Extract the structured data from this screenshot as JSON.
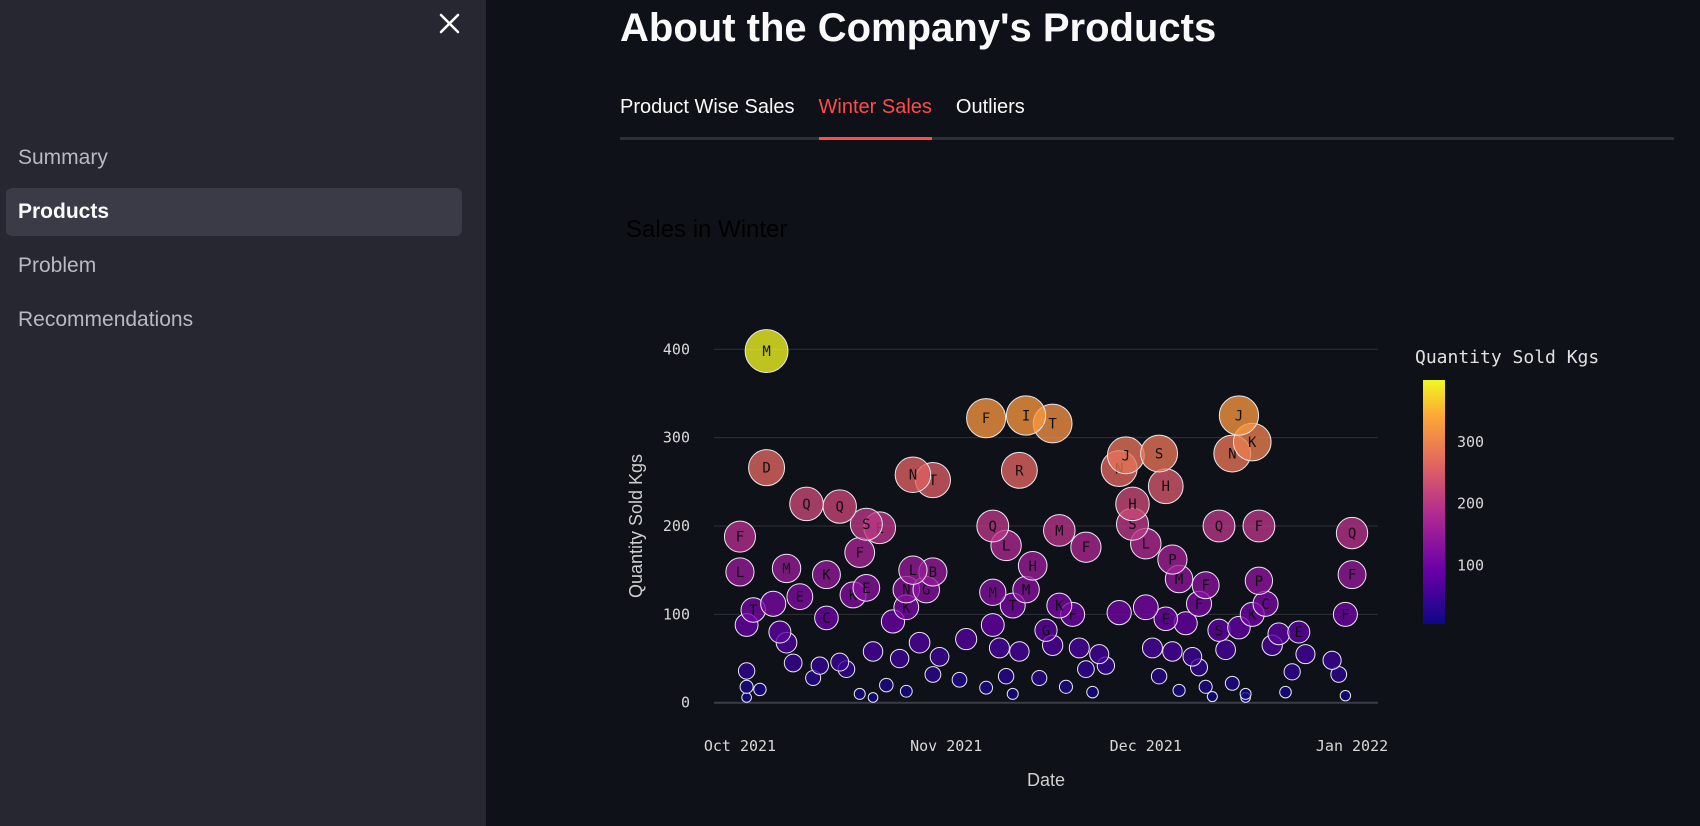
{
  "sidebar": {
    "close_icon": "close-icon",
    "items": [
      {
        "label": "Summary",
        "active": false
      },
      {
        "label": "Products",
        "active": true
      },
      {
        "label": "Problem",
        "active": false
      },
      {
        "label": "Recommendations",
        "active": false
      }
    ]
  },
  "main": {
    "title": "About the Company's Products",
    "tabs": [
      {
        "label": "Product Wise Sales",
        "active": false
      },
      {
        "label": "Winter Sales",
        "active": true
      },
      {
        "label": "Outliers",
        "active": false
      }
    ]
  },
  "colors": {
    "background": "#0e1117",
    "sidebar": "#262730",
    "accent": "#ff4b4b",
    "gridline": "#2f323a"
  },
  "chart_data": {
    "type": "scatter",
    "title": "Sales in Winter",
    "xlabel": "Date",
    "ylabel": "Quantity Sold Kgs",
    "xlim": [
      "2021-09-28",
      "2022-01-04"
    ],
    "ylim": [
      -15,
      415
    ],
    "yticks": [
      0,
      100,
      200,
      300,
      400
    ],
    "xticks": [
      {
        "date": "2021-10-01",
        "label": "Oct 2021"
      },
      {
        "date": "2021-11-01",
        "label": "Nov 2021"
      },
      {
        "date": "2021-12-01",
        "label": "Dec 2021"
      },
      {
        "date": "2022-01-01",
        "label": "Jan 2022"
      }
    ],
    "colorbar": {
      "title": "Quantity Sold Kgs",
      "ticks": [
        100,
        200,
        300
      ],
      "min": 5,
      "max": 400
    },
    "points": [
      {
        "date": "2021-10-05",
        "qty": 398,
        "label": "M"
      },
      {
        "date": "2021-10-05",
        "qty": 266,
        "label": "D"
      },
      {
        "date": "2021-10-11",
        "qty": 225,
        "label": "Q"
      },
      {
        "date": "2021-10-16",
        "qty": 222,
        "label": "Q"
      },
      {
        "date": "2021-10-01",
        "qty": 188,
        "label": "F"
      },
      {
        "date": "2021-10-01",
        "qty": 148,
        "label": "L"
      },
      {
        "date": "2021-10-08",
        "qty": 152,
        "label": "M"
      },
      {
        "date": "2021-10-14",
        "qty": 145,
        "label": "K"
      },
      {
        "date": "2021-10-18",
        "qty": 122,
        "label": "K"
      },
      {
        "date": "2021-10-20",
        "qty": 202,
        "label": "S"
      },
      {
        "date": "2021-10-22",
        "qty": 198,
        "label": "E"
      },
      {
        "date": "2021-10-19",
        "qty": 170,
        "label": "F"
      },
      {
        "date": "2021-10-20",
        "qty": 130,
        "label": "E"
      },
      {
        "date": "2021-10-27",
        "qty": 258,
        "label": "N"
      },
      {
        "date": "2021-10-30",
        "qty": 252,
        "label": "T"
      },
      {
        "date": "2021-10-27",
        "qty": 150,
        "label": "L"
      },
      {
        "date": "2021-10-30",
        "qty": 148,
        "label": "B"
      },
      {
        "date": "2021-10-26",
        "qty": 128,
        "label": "N"
      },
      {
        "date": "2021-10-29",
        "qty": 128,
        "label": "G"
      },
      {
        "date": "2021-11-07",
        "qty": 322,
        "label": "F"
      },
      {
        "date": "2021-11-08",
        "qty": 200,
        "label": "Q"
      },
      {
        "date": "2021-11-10",
        "qty": 178,
        "label": "L"
      },
      {
        "date": "2021-11-08",
        "qty": 125,
        "label": "M"
      },
      {
        "date": "2021-11-13",
        "qty": 325,
        "label": "I"
      },
      {
        "date": "2021-11-12",
        "qty": 263,
        "label": "R"
      },
      {
        "date": "2021-11-17",
        "qty": 316,
        "label": "T"
      },
      {
        "date": "2021-11-18",
        "qty": 195,
        "label": "M"
      },
      {
        "date": "2021-11-14",
        "qty": 155,
        "label": "H"
      },
      {
        "date": "2021-11-13",
        "qty": 128,
        "label": "M"
      },
      {
        "date": "2021-11-18",
        "qty": 110,
        "label": "K"
      },
      {
        "date": "2021-11-22",
        "qty": 176,
        "label": "F"
      },
      {
        "date": "2021-11-28",
        "qty": 280,
        "label": "J"
      },
      {
        "date": "2021-11-27",
        "qty": 265,
        "label": "N"
      },
      {
        "date": "2021-12-03",
        "qty": 282,
        "label": "S"
      },
      {
        "date": "2021-12-04",
        "qty": 245,
        "label": "H"
      },
      {
        "date": "2021-11-29",
        "qty": 225,
        "label": "H"
      },
      {
        "date": "2021-11-29",
        "qty": 202,
        "label": "S"
      },
      {
        "date": "2021-12-01",
        "qty": 180,
        "label": "L"
      },
      {
        "date": "2021-12-05",
        "qty": 162,
        "label": "P"
      },
      {
        "date": "2021-12-06",
        "qty": 140,
        "label": "M"
      },
      {
        "date": "2021-12-10",
        "qty": 133,
        "label": "F"
      },
      {
        "date": "2021-12-09",
        "qty": 112,
        "label": "F"
      },
      {
        "date": "2021-12-15",
        "qty": 325,
        "label": "J"
      },
      {
        "date": "2021-12-14",
        "qty": 282,
        "label": "N"
      },
      {
        "date": "2021-12-17",
        "qty": 295,
        "label": "K"
      },
      {
        "date": "2021-12-12",
        "qty": 200,
        "label": "Q"
      },
      {
        "date": "2021-12-18",
        "qty": 200,
        "label": "F"
      },
      {
        "date": "2021-12-18",
        "qty": 138,
        "label": "P"
      },
      {
        "date": "2021-12-19",
        "qty": 112,
        "label": "C"
      },
      {
        "date": "2022-01-01",
        "qty": 192,
        "label": "Q"
      },
      {
        "date": "2022-01-01",
        "qty": 145,
        "label": "F"
      },
      {
        "date": "2021-12-31",
        "qty": 100,
        "label": "F"
      },
      {
        "date": "2021-10-03",
        "qty": 105,
        "label": "T"
      },
      {
        "date": "2021-10-06",
        "qty": 112,
        "label": ""
      },
      {
        "date": "2021-10-10",
        "qty": 120,
        "label": "E"
      },
      {
        "date": "2021-10-14",
        "qty": 96,
        "label": "C"
      },
      {
        "date": "2021-10-02",
        "qty": 88,
        "label": ""
      },
      {
        "date": "2021-10-07",
        "qty": 80,
        "label": ""
      },
      {
        "date": "2021-10-08",
        "qty": 68,
        "label": ""
      },
      {
        "date": "2021-10-26",
        "qty": 108,
        "label": "K"
      },
      {
        "date": "2021-10-24",
        "qty": 92,
        "label": ""
      },
      {
        "date": "2021-11-08",
        "qty": 88,
        "label": ""
      },
      {
        "date": "2021-11-11",
        "qty": 110,
        "label": "T"
      },
      {
        "date": "2021-11-20",
        "qty": 100,
        "label": "F"
      },
      {
        "date": "2021-11-16",
        "qty": 82,
        "label": "G"
      },
      {
        "date": "2021-11-27",
        "qty": 102,
        "label": ""
      },
      {
        "date": "2021-12-01",
        "qty": 108,
        "label": ""
      },
      {
        "date": "2021-12-04",
        "qty": 95,
        "label": "E"
      },
      {
        "date": "2021-12-07",
        "qty": 90,
        "label": ""
      },
      {
        "date": "2021-12-12",
        "qty": 82,
        "label": "S"
      },
      {
        "date": "2021-12-15",
        "qty": 85,
        "label": ""
      },
      {
        "date": "2021-12-17",
        "qty": 100,
        "label": "K"
      },
      {
        "date": "2021-12-21",
        "qty": 78,
        "label": ""
      },
      {
        "date": "2021-12-24",
        "qty": 80,
        "label": "E"
      },
      {
        "date": "2021-10-09",
        "qty": 45,
        "label": ""
      },
      {
        "date": "2021-10-13",
        "qty": 42,
        "label": ""
      },
      {
        "date": "2021-10-16",
        "qty": 46,
        "label": ""
      },
      {
        "date": "2021-10-21",
        "qty": 58,
        "label": ""
      },
      {
        "date": "2021-10-25",
        "qty": 50,
        "label": ""
      },
      {
        "date": "2021-10-28",
        "qty": 68,
        "label": ""
      },
      {
        "date": "2021-10-31",
        "qty": 52,
        "label": ""
      },
      {
        "date": "2021-11-04",
        "qty": 72,
        "label": ""
      },
      {
        "date": "2021-11-09",
        "qty": 62,
        "label": ""
      },
      {
        "date": "2021-11-12",
        "qty": 58,
        "label": ""
      },
      {
        "date": "2021-11-17",
        "qty": 65,
        "label": ""
      },
      {
        "date": "2021-11-21",
        "qty": 62,
        "label": ""
      },
      {
        "date": "2021-11-24",
        "qty": 55,
        "label": ""
      },
      {
        "date": "2021-12-02",
        "qty": 62,
        "label": ""
      },
      {
        "date": "2021-12-05",
        "qty": 58,
        "label": ""
      },
      {
        "date": "2021-12-08",
        "qty": 52,
        "label": ""
      },
      {
        "date": "2021-12-13",
        "qty": 60,
        "label": ""
      },
      {
        "date": "2021-12-20",
        "qty": 65,
        "label": ""
      },
      {
        "date": "2021-12-25",
        "qty": 55,
        "label": ""
      },
      {
        "date": "2021-12-29",
        "qty": 48,
        "label": ""
      },
      {
        "date": "2021-10-02",
        "qty": 36,
        "label": ""
      },
      {
        "date": "2021-10-12",
        "qty": 28,
        "label": ""
      },
      {
        "date": "2021-10-17",
        "qty": 38,
        "label": ""
      },
      {
        "date": "2021-10-23",
        "qty": 20,
        "label": ""
      },
      {
        "date": "2021-10-30",
        "qty": 32,
        "label": ""
      },
      {
        "date": "2021-11-03",
        "qty": 26,
        "label": ""
      },
      {
        "date": "2021-11-10",
        "qty": 30,
        "label": ""
      },
      {
        "date": "2021-11-15",
        "qty": 28,
        "label": ""
      },
      {
        "date": "2021-11-22",
        "qty": 38,
        "label": ""
      },
      {
        "date": "2021-11-25",
        "qty": 42,
        "label": ""
      },
      {
        "date": "2021-12-03",
        "qty": 30,
        "label": ""
      },
      {
        "date": "2021-12-09",
        "qty": 40,
        "label": ""
      },
      {
        "date": "2021-12-14",
        "qty": 22,
        "label": ""
      },
      {
        "date": "2021-12-23",
        "qty": 35,
        "label": ""
      },
      {
        "date": "2021-12-30",
        "qty": 32,
        "label": ""
      },
      {
        "date": "2021-10-02",
        "qty": 18,
        "label": ""
      },
      {
        "date": "2021-10-04",
        "qty": 15,
        "label": ""
      },
      {
        "date": "2021-10-19",
        "qty": 10,
        "label": ""
      },
      {
        "date": "2021-10-26",
        "qty": 13,
        "label": ""
      },
      {
        "date": "2021-11-07",
        "qty": 17,
        "label": ""
      },
      {
        "date": "2021-11-11",
        "qty": 10,
        "label": ""
      },
      {
        "date": "2021-11-19",
        "qty": 18,
        "label": ""
      },
      {
        "date": "2021-11-23",
        "qty": 12,
        "label": ""
      },
      {
        "date": "2021-12-06",
        "qty": 14,
        "label": ""
      },
      {
        "date": "2021-12-10",
        "qty": 18,
        "label": ""
      },
      {
        "date": "2021-12-16",
        "qty": 10,
        "label": ""
      },
      {
        "date": "2021-12-22",
        "qty": 12,
        "label": ""
      },
      {
        "date": "2021-12-31",
        "qty": 8,
        "label": ""
      },
      {
        "date": "2021-10-02",
        "qty": 6,
        "label": ""
      },
      {
        "date": "2021-10-21",
        "qty": 6,
        "label": ""
      },
      {
        "date": "2021-12-11",
        "qty": 7,
        "label": ""
      },
      {
        "date": "2021-12-16",
        "qty": 6,
        "label": ""
      }
    ]
  }
}
